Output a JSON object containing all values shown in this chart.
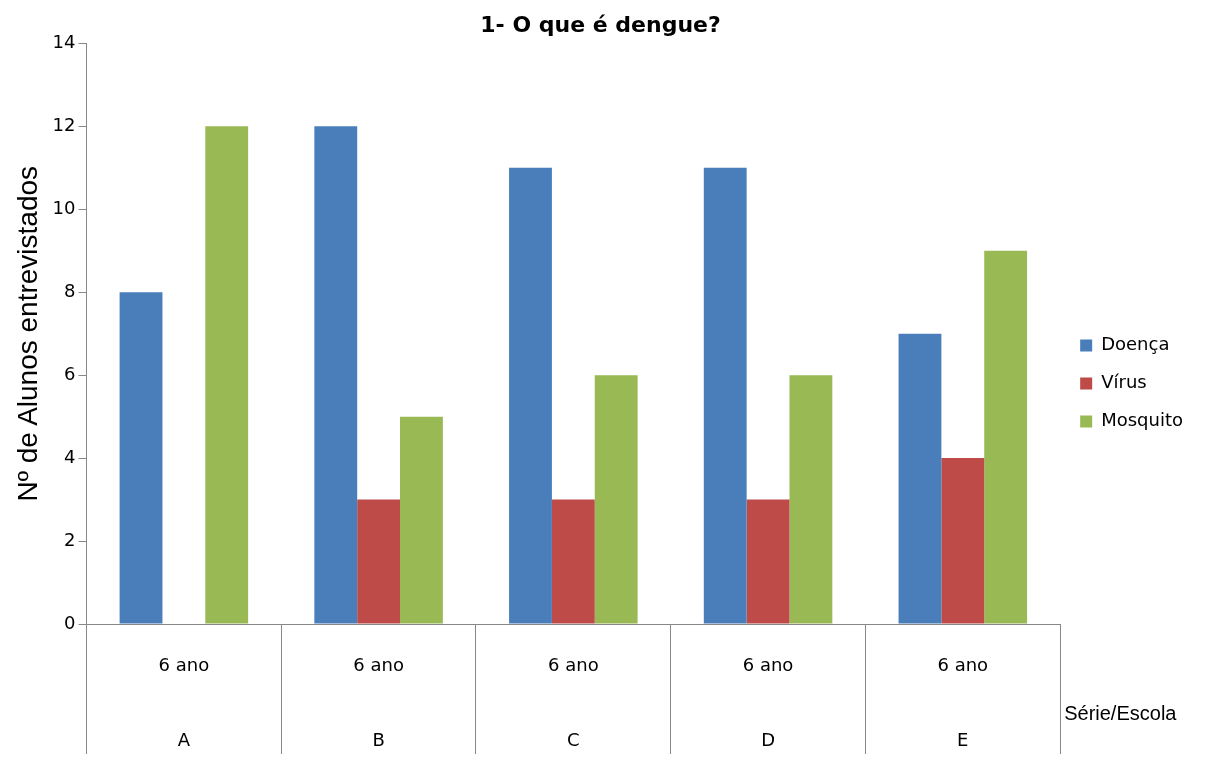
{
  "chart_data": {
    "type": "bar",
    "title": "1- O que é dengue?",
    "xlabel": "Série/Escola",
    "ylabel": "Nº de Alunos entrevistados",
    "categories": [
      "6 ano\nA",
      "6 ano\nB",
      "6 ano\nC",
      "6 ano\nD",
      "6 ano\nE"
    ],
    "series": [
      {
        "name": "Doença",
        "color": "#4a7ebb",
        "values": [
          8,
          12,
          11,
          11,
          7
        ]
      },
      {
        "name": "Vírus",
        "color": "#be4b48",
        "values": [
          0,
          3,
          3,
          3,
          4
        ]
      },
      {
        "name": "Mosquito",
        "color": "#98b954",
        "values": [
          12,
          5,
          6,
          6,
          9
        ]
      }
    ],
    "ylim": [
      0,
      14
    ],
    "yticks": [
      0,
      2,
      4,
      6,
      8,
      10,
      12,
      14
    ],
    "grid": false,
    "legend": "right"
  }
}
